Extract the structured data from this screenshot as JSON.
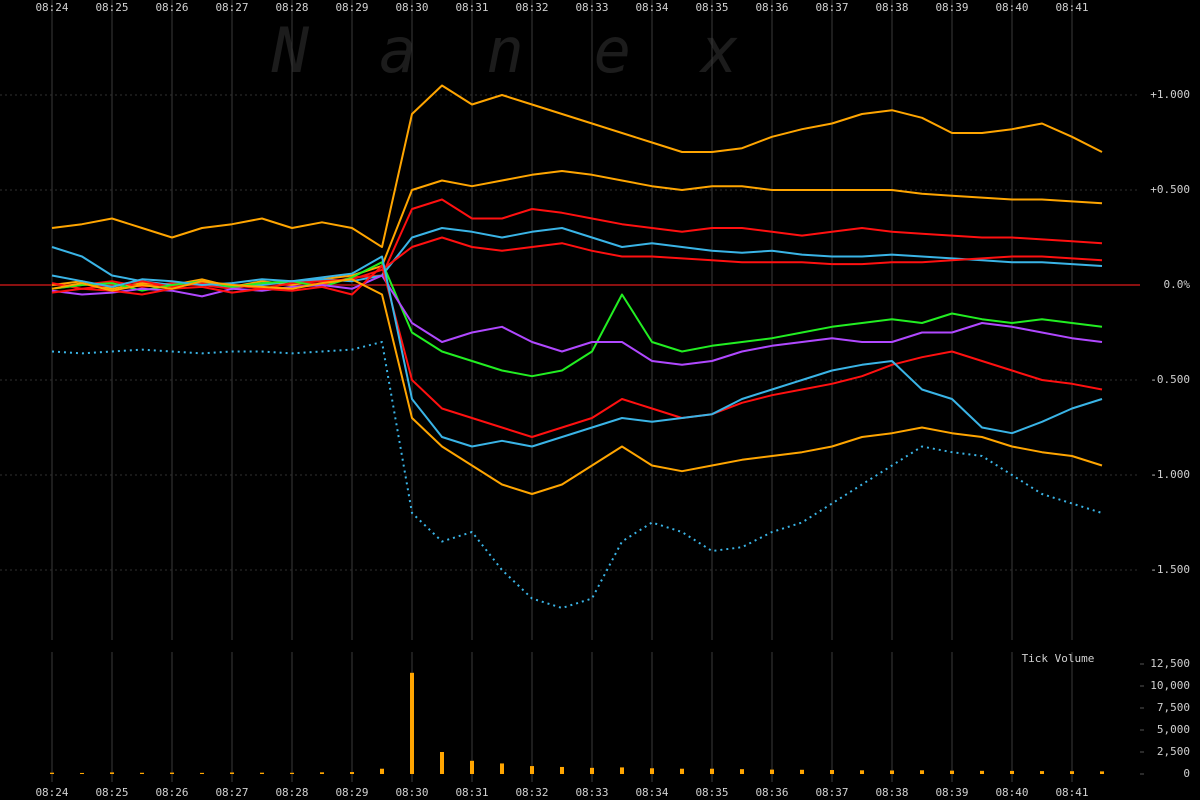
{
  "chart_data": [
    {
      "type": "line",
      "watermark": "Nanex",
      "categories": [
        "08:24",
        null,
        "08:25",
        null,
        "08:26",
        null,
        "08:27",
        null,
        "08:28",
        null,
        "08:29",
        null,
        "08:30",
        null,
        "08:31",
        null,
        "08:32",
        null,
        "08:33",
        null,
        "08:34",
        null,
        "08:35",
        null,
        "08:36",
        null,
        "08:37",
        null,
        "08:38",
        null,
        "08:39",
        null,
        "08:40",
        null,
        "08:41",
        null
      ],
      "ylim": [
        -1.85,
        1.5
      ],
      "yticks": [
        {
          "value": 1,
          "label": "+1.000"
        },
        {
          "value": 0.5,
          "label": "+0.500"
        },
        {
          "value": 0,
          "label": "0.0%"
        },
        {
          "value": -0.5,
          "label": "-0.500"
        },
        {
          "value": -1,
          "label": "-1.000"
        },
        {
          "value": -1.5,
          "label": "-1.500"
        }
      ],
      "grid": true,
      "zero_line_color": "#8b1010",
      "series": [
        {
          "color": "#ffa500",
          "values": [
            0.3,
            0.32,
            0.35,
            0.3,
            0.25,
            0.3,
            0.32,
            0.35,
            0.3,
            0.33,
            0.3,
            0.2,
            0.9,
            1.05,
            0.95,
            1.0,
            0.95,
            0.9,
            0.85,
            0.8,
            0.75,
            0.7,
            0.7,
            0.72,
            0.78,
            0.82,
            0.85,
            0.9,
            0.92,
            0.88,
            0.8,
            0.8,
            0.82,
            0.85,
            0.78,
            0.7
          ]
        },
        {
          "color": "#ffa500",
          "values": [
            0,
            0.02,
            -0.02,
            0.01,
            0,
            0.03,
            -0.01,
            0.02,
            0,
            0.03,
            0.05,
            0.1,
            0.5,
            0.55,
            0.52,
            0.55,
            0.58,
            0.6,
            0.58,
            0.55,
            0.52,
            0.5,
            0.52,
            0.52,
            0.5,
            0.5,
            0.5,
            0.5,
            0.5,
            0.48,
            0.47,
            0.46,
            0.45,
            0.45,
            0.44,
            0.43
          ]
        },
        {
          "color": "#ff1010",
          "values": [
            -0.02,
            0,
            0.02,
            -0.01,
            0.01,
            0,
            -0.02,
            0.01,
            0.02,
            0,
            0.04,
            0.05,
            0.4,
            0.45,
            0.35,
            0.35,
            0.4,
            0.38,
            0.35,
            0.32,
            0.3,
            0.28,
            0.3,
            0.3,
            0.28,
            0.26,
            0.28,
            0.3,
            0.28,
            0.27,
            0.26,
            0.25,
            0.25,
            0.24,
            0.23,
            0.22
          ]
        },
        {
          "color": "#3ab4e6",
          "values": [
            0.2,
            0.15,
            0.05,
            0.02,
            0,
            0.01,
            -0.01,
            0,
            0.02,
            0.03,
            0.02,
            0.05,
            0.25,
            0.3,
            0.28,
            0.25,
            0.28,
            0.3,
            0.25,
            0.2,
            0.22,
            0.2,
            0.18,
            0.17,
            0.18,
            0.16,
            0.15,
            0.15,
            0.16,
            0.15,
            0.14,
            0.13,
            0.12,
            0.12,
            0.11,
            0.1
          ]
        },
        {
          "color": "#ff1010",
          "values": [
            0.01,
            -0.02,
            0,
            0.02,
            -0.01,
            0.01,
            0,
            -0.02,
            0.01,
            0.02,
            0.03,
            0.08,
            0.2,
            0.25,
            0.2,
            0.18,
            0.2,
            0.22,
            0.18,
            0.15,
            0.15,
            0.14,
            0.13,
            0.12,
            0.12,
            0.12,
            0.11,
            0.11,
            0.12,
            0.12,
            0.13,
            0.14,
            0.15,
            0.15,
            0.14,
            0.13
          ]
        },
        {
          "color": "#22ee22",
          "values": [
            -0.02,
            0,
            0.01,
            -0.03,
            0,
            0.02,
            -0.01,
            0.01,
            0.02,
            -0.01,
            0.04,
            0.12,
            -0.25,
            -0.35,
            -0.4,
            -0.45,
            -0.48,
            -0.45,
            -0.35,
            -0.05,
            -0.3,
            -0.35,
            -0.32,
            -0.3,
            -0.28,
            -0.25,
            -0.22,
            -0.2,
            -0.18,
            -0.2,
            -0.15,
            -0.18,
            -0.2,
            -0.18,
            -0.2,
            -0.22
          ]
        },
        {
          "color": "#b048ff",
          "values": [
            -0.03,
            -0.05,
            -0.04,
            -0.02,
            -0.03,
            -0.06,
            -0.02,
            -0.03,
            -0.01,
            0,
            -0.02,
            0.05,
            -0.2,
            -0.3,
            -0.25,
            -0.22,
            -0.3,
            -0.35,
            -0.3,
            -0.3,
            -0.4,
            -0.42,
            -0.4,
            -0.35,
            -0.32,
            -0.3,
            -0.28,
            -0.3,
            -0.3,
            -0.25,
            -0.25,
            -0.2,
            -0.22,
            -0.25,
            -0.28,
            -0.3
          ]
        },
        {
          "color": "#ff1010",
          "values": [
            -0.04,
            -0.02,
            -0.03,
            -0.05,
            -0.02,
            -0.01,
            -0.04,
            -0.02,
            -0.03,
            -0.01,
            -0.05,
            0.1,
            -0.5,
            -0.65,
            -0.7,
            -0.75,
            -0.8,
            -0.75,
            -0.7,
            -0.6,
            -0.65,
            -0.7,
            -0.68,
            -0.62,
            -0.58,
            -0.55,
            -0.52,
            -0.48,
            -0.42,
            -0.38,
            -0.35,
            -0.4,
            -0.45,
            -0.5,
            -0.52,
            -0.55
          ]
        },
        {
          "color": "#3ab4e6",
          "values": [
            0.05,
            0.02,
            -0.01,
            0.03,
            0.02,
            0,
            0.01,
            0.03,
            0.02,
            0.04,
            0.06,
            0.15,
            -0.6,
            -0.8,
            -0.85,
            -0.82,
            -0.85,
            -0.8,
            -0.75,
            -0.7,
            -0.72,
            -0.7,
            -0.68,
            -0.6,
            -0.55,
            -0.5,
            -0.45,
            -0.42,
            -0.4,
            -0.55,
            -0.6,
            -0.75,
            -0.78,
            -0.72,
            -0.65,
            -0.6
          ]
        },
        {
          "color": "#ffa500",
          "values": [
            -0.02,
            0.01,
            -0.03,
            0,
            -0.02,
            0.02,
            0,
            -0.01,
            -0.02,
            0.01,
            0.03,
            -0.05,
            -0.7,
            -0.85,
            -0.95,
            -1.05,
            -1.1,
            -1.05,
            -0.95,
            -0.85,
            -0.95,
            -0.98,
            -0.95,
            -0.92,
            -0.9,
            -0.88,
            -0.85,
            -0.8,
            -0.78,
            -0.75,
            -0.78,
            -0.8,
            -0.85,
            -0.88,
            -0.9,
            -0.95
          ]
        },
        {
          "color": "#3ab4e6",
          "dashed": true,
          "values": [
            -0.35,
            -0.36,
            -0.35,
            -0.34,
            -0.35,
            -0.36,
            -0.35,
            -0.35,
            -0.36,
            -0.35,
            -0.34,
            -0.3,
            -1.2,
            -1.35,
            -1.3,
            -1.5,
            -1.65,
            -1.7,
            -1.65,
            -1.35,
            -1.25,
            -1.3,
            -1.4,
            -1.38,
            -1.3,
            -1.25,
            -1.15,
            -1.05,
            -0.95,
            -0.85,
            -0.88,
            -0.9,
            -1.0,
            -1.1,
            -1.15,
            -1.2
          ]
        }
      ]
    },
    {
      "type": "bar",
      "title": "Tick Volume",
      "categories": [
        "08:24",
        null,
        "08:25",
        null,
        "08:26",
        null,
        "08:27",
        null,
        "08:28",
        null,
        "08:29",
        null,
        "08:30",
        null,
        "08:31",
        null,
        "08:32",
        null,
        "08:33",
        null,
        "08:34",
        null,
        "08:35",
        null,
        "08:36",
        null,
        "08:37",
        null,
        "08:38",
        null,
        "08:39",
        null,
        "08:40",
        null,
        "08:41",
        null
      ],
      "values": [
        150,
        120,
        180,
        140,
        160,
        130,
        170,
        150,
        140,
        190,
        220,
        600,
        11500,
        2500,
        1500,
        1200,
        900,
        800,
        700,
        750,
        650,
        600,
        600,
        550,
        500,
        480,
        450,
        420,
        400,
        420,
        380,
        360,
        350,
        330,
        320,
        300
      ],
      "color": "#ffa500",
      "ylim": [
        0,
        12500
      ],
      "yticks": [
        {
          "value": 12500,
          "label": "12,500"
        },
        {
          "value": 10000,
          "label": "10,000"
        },
        {
          "value": 7500,
          "label": "7,500"
        },
        {
          "value": 5000,
          "label": "5,000"
        },
        {
          "value": 2500,
          "label": "2,500"
        },
        0
      ]
    }
  ]
}
